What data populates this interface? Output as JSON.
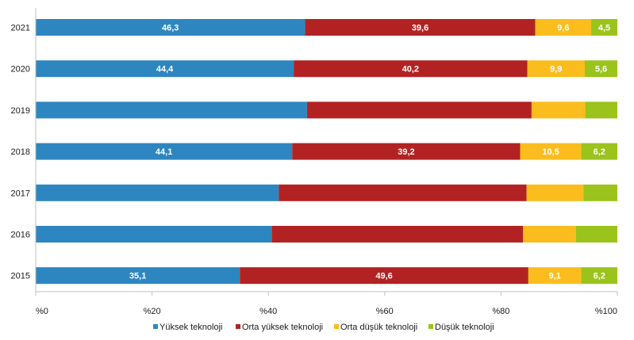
{
  "chart_data": {
    "type": "bar",
    "orientation": "horizontal",
    "stacked": true,
    "percent_stacked": true,
    "categories": [
      "2021",
      "2020",
      "2019",
      "2018",
      "2017",
      "2016",
      "2015"
    ],
    "series": [
      {
        "name": "Yüksek teknoloji",
        "color": "#2e86c1",
        "values": [
          46.3,
          44.4,
          46.5,
          44.1,
          41.8,
          40.6,
          35.1
        ],
        "labels": [
          "46,3",
          "44,4",
          "",
          "44,1",
          "",
          "",
          "35,1"
        ]
      },
      {
        "name": "Orta yüksek teknoloji",
        "color": "#b22222",
        "values": [
          39.6,
          40.2,
          38.5,
          39.2,
          42.6,
          43.2,
          49.6
        ],
        "labels": [
          "39,6",
          "40,2",
          "",
          "39,2",
          "",
          "",
          "49,6"
        ]
      },
      {
        "name": "Orta düşük teknoloji",
        "color": "#fbbd1d",
        "values": [
          9.6,
          9.9,
          9.2,
          10.5,
          9.8,
          9.1,
          9.1
        ],
        "labels": [
          "9,6",
          "9,9",
          "",
          "10,5",
          "",
          "",
          "9,1"
        ]
      },
      {
        "name": "Düşük teknoloji",
        "color": "#9ac31c",
        "values": [
          4.5,
          5.6,
          5.5,
          6.2,
          5.8,
          7.1,
          6.2
        ],
        "labels": [
          "4,5",
          "5,6",
          "",
          "6,2",
          "",
          "",
          "6,2"
        ]
      }
    ],
    "xlim": [
      0,
      100
    ],
    "x_ticks": [
      0,
      20,
      40,
      60,
      80,
      100
    ],
    "x_tick_labels": [
      "%0",
      "%20",
      "%40",
      "%60",
      "%80",
      "%100"
    ],
    "grid": false,
    "legend_position": "bottom",
    "title": "",
    "xlabel": "",
    "ylabel": ""
  }
}
